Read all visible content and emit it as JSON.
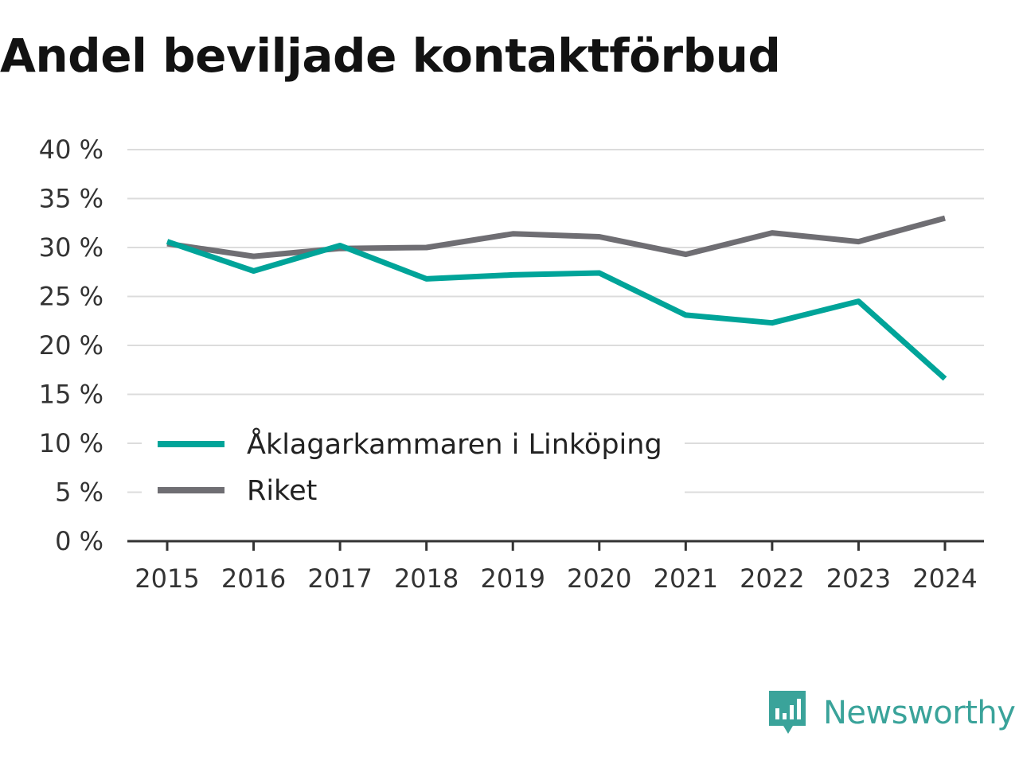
{
  "chart_data": {
    "type": "line",
    "title": "Andel beviljade kontaktförbud",
    "categories": [
      "2015",
      "2016",
      "2017",
      "2018",
      "2019",
      "2020",
      "2021",
      "2022",
      "2023",
      "2024"
    ],
    "ylim": [
      0,
      40
    ],
    "yticks": [
      0,
      5,
      10,
      15,
      20,
      25,
      30,
      35,
      40
    ],
    "ytick_labels": [
      "0 %",
      "5 %",
      "10 %",
      "15 %",
      "20 %",
      "25 %",
      "30 %",
      "35 %",
      "40 %"
    ],
    "grid": true,
    "legend_position": "bottom-left",
    "series": [
      {
        "name": "Åklagarkammaren i Linköping",
        "color": "#00a499",
        "values": [
          30.6,
          27.6,
          30.2,
          26.8,
          27.2,
          27.4,
          23.1,
          22.3,
          24.5,
          16.6
        ]
      },
      {
        "name": "Riket",
        "color": "#6f6e73",
        "values": [
          30.4,
          29.1,
          29.9,
          30.0,
          31.4,
          31.1,
          29.3,
          31.5,
          30.6,
          33.0
        ]
      }
    ]
  },
  "brand": {
    "name": "Newsworthy",
    "color": "#3aa39a"
  }
}
